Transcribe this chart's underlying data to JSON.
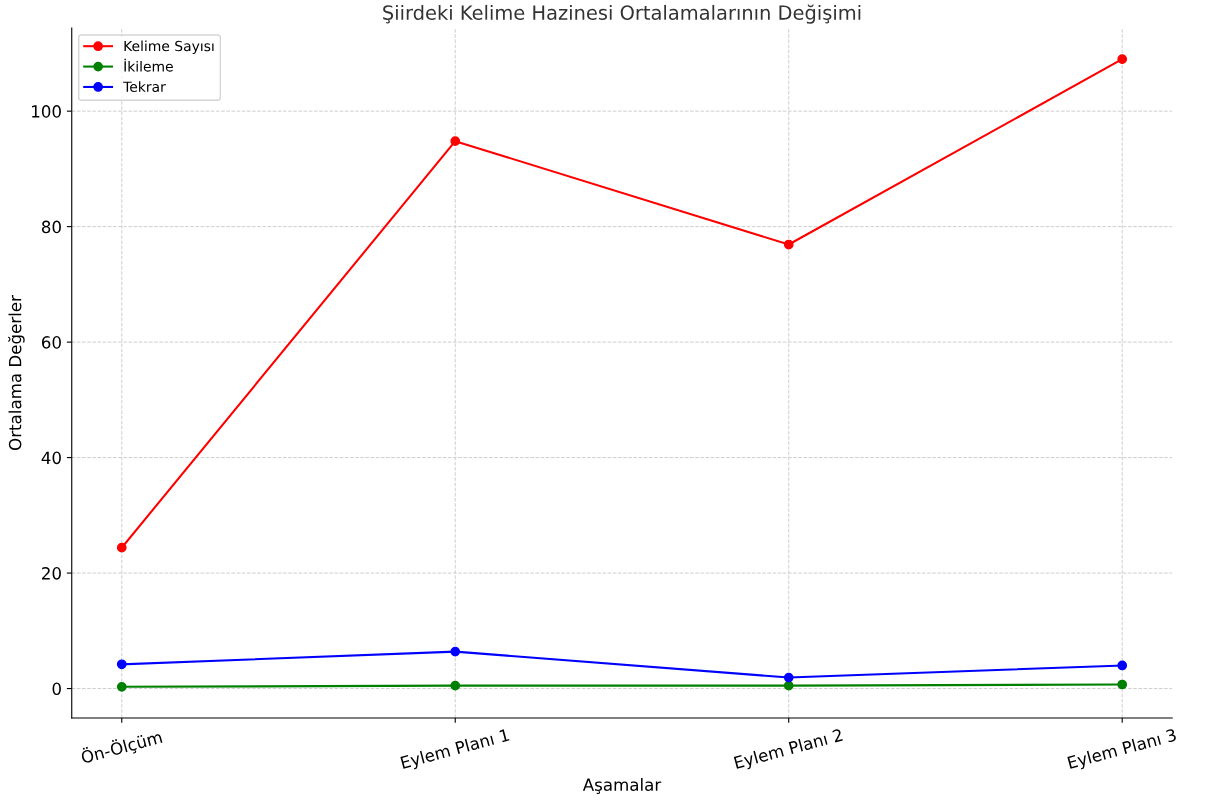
{
  "chart_data": {
    "type": "line",
    "title": "Şiirdeki Kelime Hazinesi Ortalamalarının Değişimi",
    "xlabel": "Aşamalar",
    "ylabel": "Ortalama Değerler",
    "categories": [
      "Ön-Ölçüm",
      "Eylem Planı 1",
      "Eylem Planı 2",
      "Eylem Planı 3"
    ],
    "series": [
      {
        "name": "Kelime Sayısı",
        "color": "#ff0000",
        "values": [
          24.4,
          94.8,
          76.9,
          109.0
        ]
      },
      {
        "name": "İkileme",
        "color": "#008000",
        "values": [
          0.3,
          0.5,
          0.5,
          0.7
        ]
      },
      {
        "name": "Tekrar",
        "color": "#0000ff",
        "values": [
          4.2,
          6.4,
          1.9,
          4.0
        ]
      }
    ],
    "ylim": [
      -5.1,
      114.4
    ],
    "yticks": [
      0,
      20,
      40,
      60,
      80,
      100
    ],
    "grid": true,
    "legend": "top left",
    "marker": "circle",
    "line_style": "solid"
  }
}
